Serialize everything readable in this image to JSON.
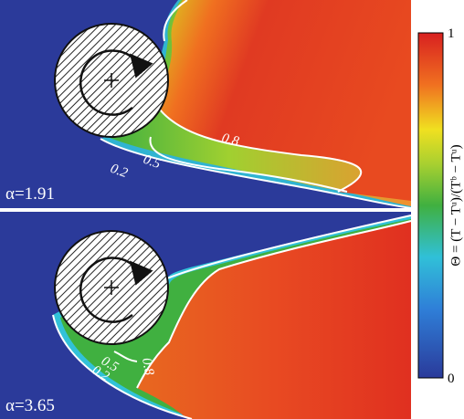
{
  "panels": [
    {
      "alpha_label": "α=1.91",
      "contour_labels": [
        "0.2",
        "0.5",
        "0.8"
      ]
    },
    {
      "alpha_label": "α=3.65",
      "contour_labels": [
        "0.2",
        "0.5",
        "0.8"
      ]
    }
  ],
  "colorbar": {
    "ticks": [
      0,
      1
    ],
    "lim": [
      0,
      1
    ],
    "label": "Θ = (T − Tᵘ)/(Tᵇ − Tᵘ)"
  }
}
